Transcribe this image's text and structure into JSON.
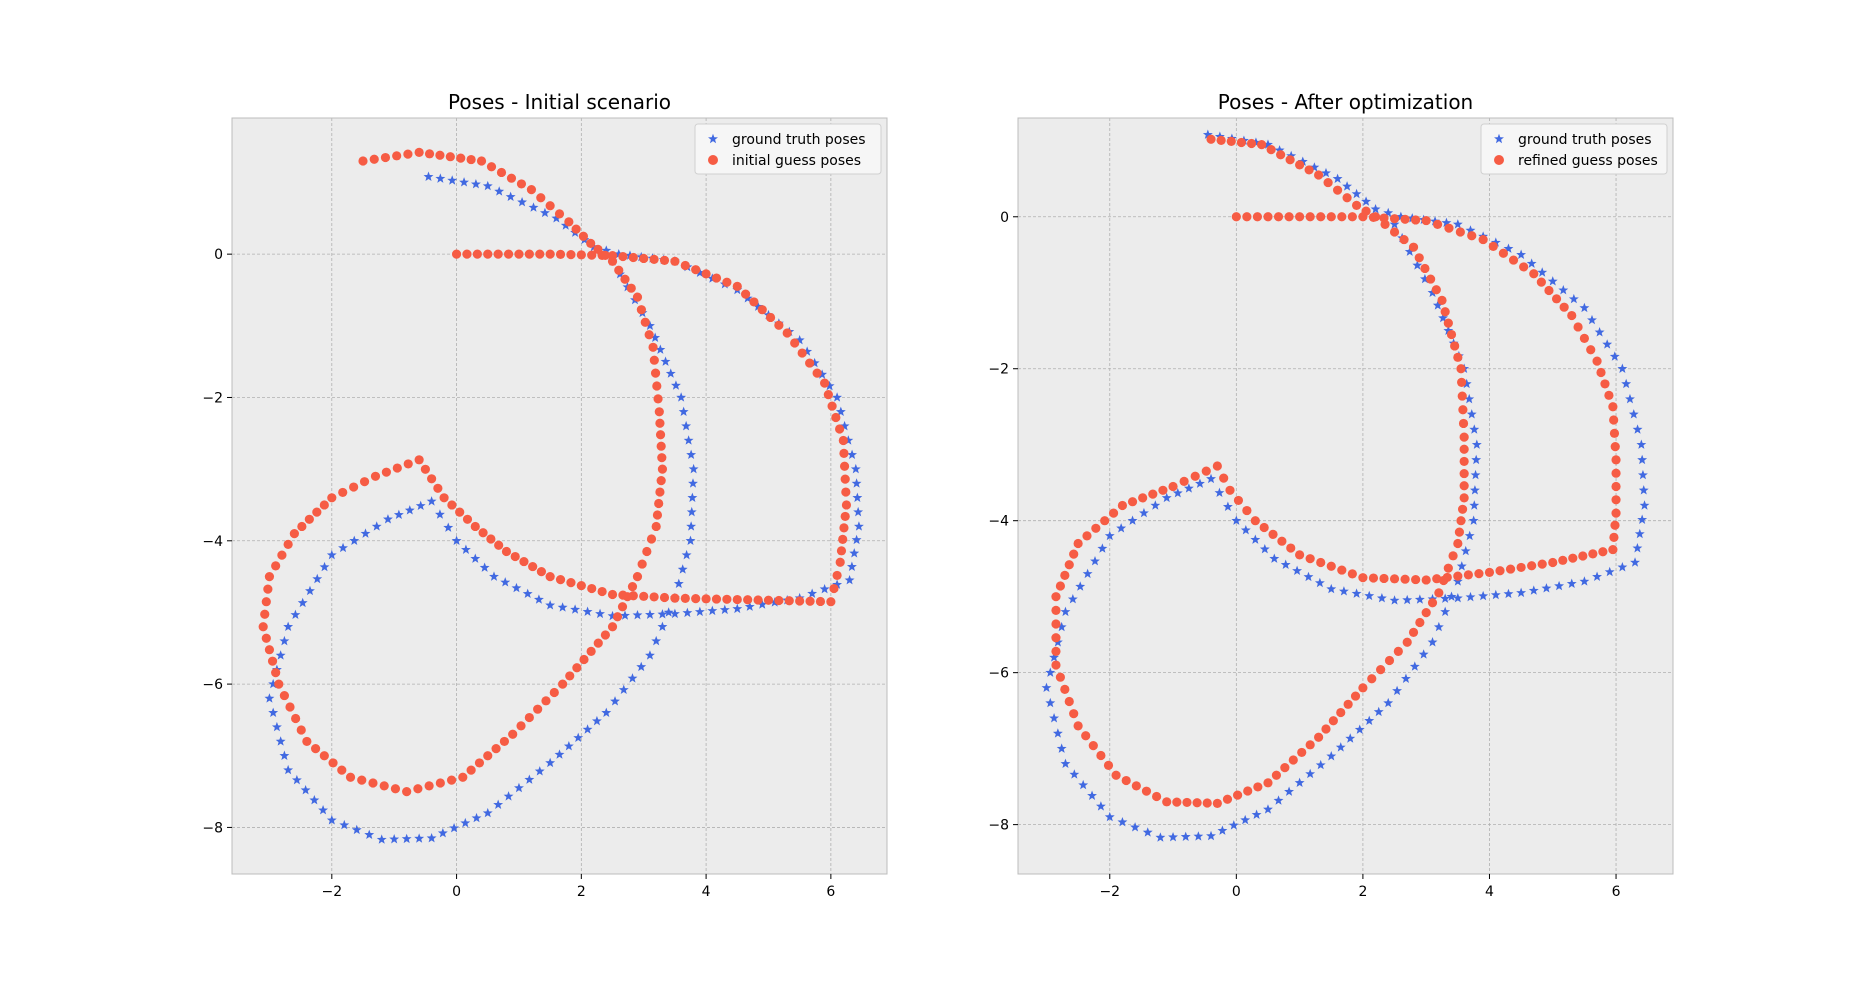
{
  "colors": {
    "ground_truth": "#4169e1",
    "guess": "#f65c44",
    "panel_bg": "#ececec",
    "grid": "#b0b0b0"
  },
  "chart_data": [
    {
      "type": "scatter",
      "title": "Poses - Initial scenario",
      "xlabel": "",
      "ylabel": "",
      "xlim": [
        -3.6,
        6.9
      ],
      "ylim": [
        -8.65,
        1.9
      ],
      "xticks": [
        -2,
        0,
        2,
        4,
        6
      ],
      "yticks": [
        -8,
        -6,
        -4,
        -2,
        0
      ],
      "grid": true,
      "legend": "top-right",
      "series": [
        {
          "name": "ground truth poses",
          "marker": "star",
          "color_key": "ground_truth",
          "points": [
            [
              -0.45,
              1.08
            ],
            [
              0.5,
              0.95
            ],
            [
              1.6,
              0.5
            ],
            [
              2.2,
              0.1
            ],
            [
              2.6,
              0.0
            ],
            [
              3.5,
              -0.1
            ],
            [
              4.5,
              -0.5
            ],
            [
              5.5,
              -1.2
            ],
            [
              6.1,
              -2.0
            ],
            [
              6.4,
              -3.0
            ],
            [
              6.45,
              -3.8
            ],
            [
              6.3,
              -4.55
            ],
            [
              5.5,
              -4.8
            ],
            [
              4.5,
              -4.95
            ],
            [
              3.5,
              -5.02
            ],
            [
              2.5,
              -5.05
            ],
            [
              1.5,
              -4.9
            ],
            [
              0.6,
              -4.5
            ],
            [
              0.0,
              -4.0
            ],
            [
              -0.4,
              -3.45
            ],
            [
              -1.1,
              -3.7
            ],
            [
              -2.0,
              -4.2
            ],
            [
              -2.7,
              -5.2
            ],
            [
              -3.0,
              -6.2
            ],
            [
              -2.7,
              -7.2
            ],
            [
              -2.0,
              -7.9
            ],
            [
              -1.2,
              -8.17
            ],
            [
              -0.4,
              -8.15
            ],
            [
              0.5,
              -7.8
            ],
            [
              1.5,
              -7.1
            ],
            [
              2.4,
              -6.4
            ],
            [
              3.1,
              -5.6
            ],
            [
              3.5,
              -4.8
            ],
            [
              3.75,
              -4.0
            ],
            [
              3.8,
              -3.0
            ],
            [
              3.6,
              -2.0
            ],
            [
              3.1,
              -1.0
            ],
            [
              2.5,
              -0.1
            ]
          ]
        },
        {
          "name": "initial guess poses",
          "marker": "circle",
          "color_key": "guess",
          "points": [
            [
              -1.5,
              1.3
            ],
            [
              -0.6,
              1.42
            ],
            [
              0.4,
              1.3
            ],
            [
              1.2,
              0.9
            ],
            [
              1.8,
              0.45
            ],
            [
              2.15,
              0.15
            ],
            [
              2.5,
              -0.1
            ],
            [
              2.9,
              -0.6
            ],
            [
              3.15,
              -1.3
            ],
            [
              3.25,
              -2.2
            ],
            [
              3.3,
              -3.0
            ],
            [
              3.2,
              -3.8
            ],
            [
              2.9,
              -4.5
            ],
            [
              2.5,
              -5.2
            ],
            [
              1.7,
              -6.0
            ],
            [
              0.9,
              -6.7
            ],
            [
              0.1,
              -7.3
            ],
            [
              -0.8,
              -7.5
            ],
            [
              -1.7,
              -7.3
            ],
            [
              -2.4,
              -6.8
            ],
            [
              -2.85,
              -6.0
            ],
            [
              -3.1,
              -5.2
            ],
            [
              -3.0,
              -4.5
            ],
            [
              -2.6,
              -3.9
            ],
            [
              -2.0,
              -3.4
            ],
            [
              -1.3,
              -3.1
            ],
            [
              -0.6,
              -2.87
            ],
            [
              -0.2,
              -3.4
            ],
            [
              0.3,
              -3.8
            ],
            [
              0.8,
              -4.15
            ],
            [
              1.5,
              -4.5
            ],
            [
              2.5,
              -4.75
            ],
            [
              3.5,
              -4.8
            ],
            [
              4.5,
              -4.82
            ],
            [
              5.5,
              -4.84
            ],
            [
              6.0,
              -4.85
            ],
            [
              6.15,
              -4.3
            ],
            [
              6.25,
              -3.5
            ],
            [
              6.2,
              -2.6
            ],
            [
              5.9,
              -1.8
            ],
            [
              5.3,
              -1.1
            ],
            [
              4.5,
              -0.45
            ],
            [
              3.5,
              -0.1
            ],
            [
              2.5,
              -0.02
            ],
            [
              1.5,
              0.0
            ],
            [
              0.5,
              0.0
            ],
            [
              0.0,
              0.0
            ]
          ]
        }
      ]
    },
    {
      "type": "scatter",
      "title": "Poses - After optimization",
      "xlabel": "",
      "ylabel": "",
      "xlim": [
        -3.45,
        6.9
      ],
      "ylim": [
        -8.65,
        1.3
      ],
      "xticks": [
        -2,
        0,
        2,
        4,
        6
      ],
      "yticks": [
        -8,
        -6,
        -4,
        -2,
        0
      ],
      "grid": true,
      "legend": "top-right",
      "series": [
        {
          "name": "ground truth poses",
          "marker": "star",
          "color_key": "ground_truth",
          "points": [
            [
              -0.45,
              1.08
            ],
            [
              0.5,
              0.95
            ],
            [
              1.6,
              0.5
            ],
            [
              2.2,
              0.1
            ],
            [
              2.6,
              0.0
            ],
            [
              3.5,
              -0.1
            ],
            [
              4.5,
              -0.5
            ],
            [
              5.5,
              -1.2
            ],
            [
              6.1,
              -2.0
            ],
            [
              6.4,
              -3.0
            ],
            [
              6.45,
              -3.8
            ],
            [
              6.3,
              -4.55
            ],
            [
              5.5,
              -4.8
            ],
            [
              4.5,
              -4.95
            ],
            [
              3.5,
              -5.02
            ],
            [
              2.5,
              -5.05
            ],
            [
              1.5,
              -4.9
            ],
            [
              0.6,
              -4.5
            ],
            [
              0.0,
              -4.0
            ],
            [
              -0.4,
              -3.45
            ],
            [
              -1.1,
              -3.7
            ],
            [
              -2.0,
              -4.2
            ],
            [
              -2.7,
              -5.2
            ],
            [
              -3.0,
              -6.2
            ],
            [
              -2.7,
              -7.2
            ],
            [
              -2.0,
              -7.9
            ],
            [
              -1.2,
              -8.17
            ],
            [
              -0.4,
              -8.15
            ],
            [
              0.5,
              -7.8
            ],
            [
              1.5,
              -7.1
            ],
            [
              2.4,
              -6.4
            ],
            [
              3.1,
              -5.6
            ],
            [
              3.5,
              -4.8
            ],
            [
              3.75,
              -4.0
            ],
            [
              3.8,
              -3.0
            ],
            [
              3.6,
              -2.0
            ],
            [
              3.1,
              -1.0
            ],
            [
              2.5,
              -0.1
            ]
          ]
        },
        {
          "name": "refined guess poses",
          "marker": "circle",
          "color_key": "guess",
          "points": [
            [
              -0.4,
              1.02
            ],
            [
              0.4,
              0.95
            ],
            [
              1.3,
              0.55
            ],
            [
              1.9,
              0.15
            ],
            [
              2.2,
              0.0
            ],
            [
              2.8,
              -0.4
            ],
            [
              3.25,
              -1.1
            ],
            [
              3.55,
              -2.0
            ],
            [
              3.6,
              -2.9
            ],
            [
              3.6,
              -3.7
            ],
            [
              3.5,
              -4.3
            ],
            [
              3.2,
              -4.95
            ],
            [
              2.7,
              -5.6
            ],
            [
              2.0,
              -6.2
            ],
            [
              1.3,
              -6.85
            ],
            [
              0.5,
              -7.45
            ],
            [
              -0.3,
              -7.72
            ],
            [
              -1.1,
              -7.7
            ],
            [
              -1.9,
              -7.35
            ],
            [
              -2.5,
              -6.7
            ],
            [
              -2.85,
              -5.9
            ],
            [
              -2.85,
              -5.0
            ],
            [
              -2.5,
              -4.3
            ],
            [
              -1.8,
              -3.8
            ],
            [
              -1.0,
              -3.55
            ],
            [
              -0.3,
              -3.28
            ],
            [
              -0.1,
              -3.6
            ],
            [
              0.3,
              -4.0
            ],
            [
              1.0,
              -4.45
            ],
            [
              2.0,
              -4.75
            ],
            [
              3.0,
              -4.78
            ],
            [
              4.0,
              -4.68
            ],
            [
              5.0,
              -4.55
            ],
            [
              5.95,
              -4.38
            ],
            [
              6.0,
              -3.9
            ],
            [
              6.0,
              -3.2
            ],
            [
              5.95,
              -2.5
            ],
            [
              5.7,
              -1.9
            ],
            [
              5.3,
              -1.3
            ],
            [
              4.7,
              -0.75
            ],
            [
              3.9,
              -0.3
            ],
            [
              3.0,
              -0.05
            ],
            [
              2.0,
              0.0
            ],
            [
              1.0,
              0.0
            ],
            [
              0.0,
              0.0
            ]
          ]
        }
      ]
    }
  ]
}
